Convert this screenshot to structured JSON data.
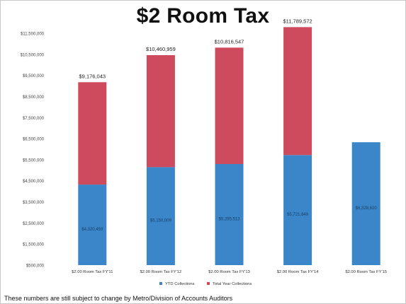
{
  "chart_data": {
    "type": "bar",
    "stacked": true,
    "title": "$2 Room Tax",
    "categories": [
      "$2.00 Room Tax FY'11",
      "$2.00 Room Tax FY'12",
      "$2.00 Room Tax FY'13",
      "$2.00 Room Tax FY'14",
      "$2.00 Room Tax FY'15"
    ],
    "series": [
      {
        "name": "YTD Collections",
        "values": [
          4320459,
          5150009,
          5295513,
          5721849,
          6328620
        ],
        "labels": [
          "$4,320,459",
          "$5,150,009",
          "$5,295,513",
          "$5,721,849",
          "$6,328,620"
        ]
      },
      {
        "name": "Total Year Collections",
        "values": [
          4855584,
          5310950,
          5521034,
          6067723,
          null
        ]
      }
    ],
    "totals": [
      9176043,
      10460959,
      10816547,
      11789572,
      null
    ],
    "total_labels": [
      "$9,176,043",
      "$10,460,959",
      "$10,816,547",
      "$11,789,572",
      ""
    ],
    "yticks": [
      "$500,000",
      "$1,500,000",
      "$2,500,000",
      "$3,500,000",
      "$4,500,000",
      "$5,500,000",
      "$6,500,000",
      "$7,500,000",
      "$8,500,000",
      "$9,500,000",
      "$10,500,000",
      "$11,500,000"
    ],
    "ylim": [
      500000,
      11500000
    ],
    "colors": {
      "ytd": "#3a86c8",
      "total": "#cd4b5c"
    },
    "legend_position": "bottom",
    "grid": false
  },
  "footnote": "These numbers are still subject to change by Metro/Division of Accounts Auditors"
}
